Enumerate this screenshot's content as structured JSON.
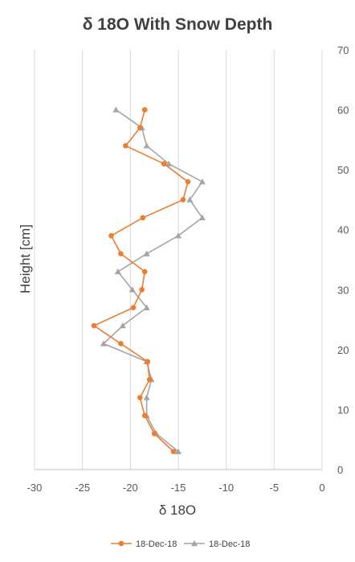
{
  "chart_data": {
    "type": "scatter",
    "title": "δ 18O With Snow Depth",
    "xlabel": "δ 18O",
    "ylabel": "Height [cm]",
    "xlim": [
      -30,
      0
    ],
    "ylim": [
      0,
      70
    ],
    "x_ticks": [
      -30,
      -25,
      -20,
      -15,
      -10,
      -5,
      0
    ],
    "y_ticks": [
      0,
      10,
      20,
      30,
      40,
      50,
      60,
      70
    ],
    "y_axis_position": "right",
    "grid": "vertical major gridlines",
    "legend_position": "bottom",
    "series": [
      {
        "name": "18-Dec-18",
        "color": "#ED7D31",
        "marker": "circle",
        "points": [
          {
            "x": -18.5,
            "y": 60
          },
          {
            "x": -19.0,
            "y": 57
          },
          {
            "x": -20.5,
            "y": 54
          },
          {
            "x": -16.5,
            "y": 51
          },
          {
            "x": -14.0,
            "y": 48
          },
          {
            "x": -14.5,
            "y": 45
          },
          {
            "x": -18.7,
            "y": 42
          },
          {
            "x": -22.0,
            "y": 39
          },
          {
            "x": -21.0,
            "y": 36
          },
          {
            "x": -18.5,
            "y": 33
          },
          {
            "x": -18.8,
            "y": 30
          },
          {
            "x": -19.7,
            "y": 27
          },
          {
            "x": -23.8,
            "y": 24
          },
          {
            "x": -21.0,
            "y": 21
          },
          {
            "x": -18.2,
            "y": 18
          },
          {
            "x": -18.0,
            "y": 15
          },
          {
            "x": -19.0,
            "y": 12
          },
          {
            "x": -18.5,
            "y": 9
          },
          {
            "x": -17.5,
            "y": 6
          },
          {
            "x": -15.5,
            "y": 3
          }
        ]
      },
      {
        "name": "18-Dec-18",
        "color": "#A5A5A5",
        "marker": "triangle",
        "points": [
          {
            "x": -21.5,
            "y": 60
          },
          {
            "x": -18.8,
            "y": 57
          },
          {
            "x": -18.3,
            "y": 54
          },
          {
            "x": -16.0,
            "y": 51
          },
          {
            "x": -12.5,
            "y": 48
          },
          {
            "x": -13.8,
            "y": 45
          },
          {
            "x": -12.5,
            "y": 42
          },
          {
            "x": -15.0,
            "y": 39
          },
          {
            "x": -18.3,
            "y": 36
          },
          {
            "x": -21.3,
            "y": 33
          },
          {
            "x": -19.8,
            "y": 30
          },
          {
            "x": -18.3,
            "y": 27
          },
          {
            "x": -20.8,
            "y": 24
          },
          {
            "x": -22.8,
            "y": 21
          },
          {
            "x": -18.3,
            "y": 18
          },
          {
            "x": -17.8,
            "y": 15
          },
          {
            "x": -18.3,
            "y": 12
          },
          {
            "x": -18.3,
            "y": 9
          },
          {
            "x": -17.3,
            "y": 6
          },
          {
            "x": -15.0,
            "y": 3
          }
        ]
      }
    ]
  }
}
